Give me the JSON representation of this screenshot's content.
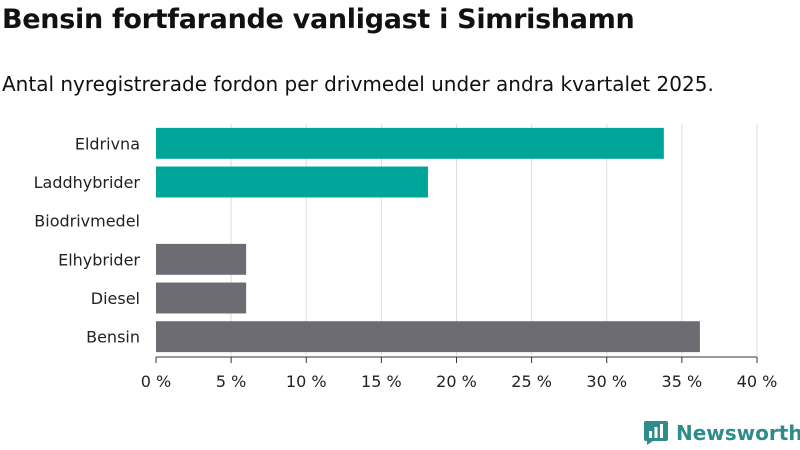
{
  "header": {
    "title": "Bensin fortfarande vanligast i Simrishamn",
    "subtitle": "Antal nyregistrerade fordon per drivmedel under andra kvartalet 2025."
  },
  "brand": {
    "name": "Newsworthy",
    "icon": "newsworthy-logo-icon",
    "color": "#2f8c8a"
  },
  "chart_data": {
    "type": "bar",
    "orientation": "horizontal",
    "title": "Bensin fortfarande vanligast i Simrishamn",
    "subtitle": "Antal nyregistrerade fordon per drivmedel under andra kvartalet 2025.",
    "categories": [
      "Eldrivna",
      "Laddhybrider",
      "Biodrivmedel",
      "Elhybrider",
      "Diesel",
      "Bensin"
    ],
    "values": [
      33.8,
      18.1,
      0,
      6.0,
      6.0,
      36.2
    ],
    "colors": [
      "#00a59a",
      "#00a59a",
      "#00a59a",
      "#6d6c72",
      "#6d6c72",
      "#6d6c72"
    ],
    "xlim": [
      0,
      40
    ],
    "xticks": [
      0,
      5,
      10,
      15,
      20,
      25,
      30,
      35,
      40
    ],
    "tick_suffix": " %",
    "xlabel": "",
    "ylabel": "",
    "grid": true,
    "legend": "none"
  }
}
